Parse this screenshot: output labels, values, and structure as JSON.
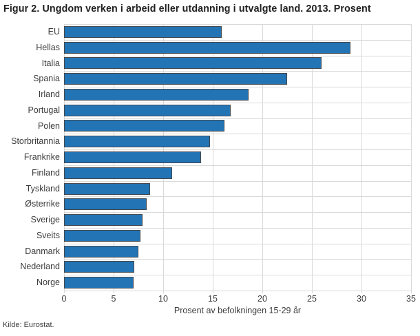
{
  "title": "Figur 2. Ungdom verken i arbeid eller utdanning i utvalgte land. 2013. Prosent",
  "source": "Kilde: Eurostat.",
  "colors": {
    "bar_fill": "#2274b5",
    "bar_border": "#45494e",
    "grid": "#d9d9d9",
    "title_text": "#1f1f1f",
    "label_text": "#3c3c3c"
  },
  "chart_data": {
    "type": "bar",
    "orientation": "horizontal",
    "title": "Figur 2. Ungdom verken i arbeid eller utdanning i utvalgte land. 2013. Prosent",
    "categories": [
      "EU",
      "Hellas",
      "Italia",
      "Spania",
      "Irland",
      "Portugal",
      "Polen",
      "Storbritannia",
      "Frankrike",
      "Finland",
      "Tyskland",
      "Østerrike",
      "Sverige",
      "Sveits",
      "Danmark",
      "Nederland",
      "Norge"
    ],
    "values": [
      15.9,
      28.9,
      26.0,
      22.5,
      18.6,
      16.8,
      16.2,
      14.7,
      13.8,
      10.9,
      8.7,
      8.3,
      7.9,
      7.7,
      7.5,
      7.1,
      7.0
    ],
    "xlabel": "Prosent av befolkningen 15-29 år",
    "ylabel": "",
    "xlim": [
      0,
      35
    ],
    "xticks": [
      0,
      5,
      10,
      15,
      20,
      25,
      30,
      35
    ],
    "grid": true,
    "legend": false
  }
}
